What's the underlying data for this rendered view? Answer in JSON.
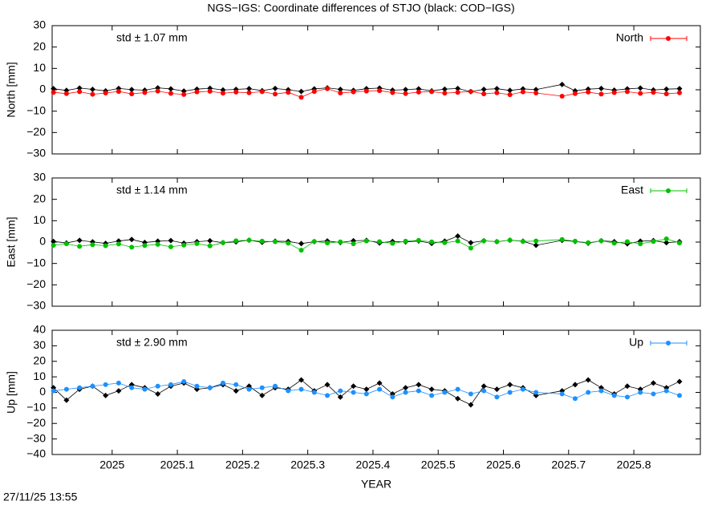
{
  "title": "NGS−IGS: Coordinate differences of STJO (black: COD−IGS)",
  "timestamp": "27/11/25 13:55",
  "chart_data": [
    {
      "type": "scatter",
      "ylabel": "North [mm]",
      "annotation": "std ± 1.07 mm",
      "annotation_color": "#ff0000",
      "legend": "top-right",
      "xlim": [
        2024.908,
        2025.902
      ],
      "xticks": [
        2025,
        2025.1,
        2025.2,
        2025.3,
        2025.4,
        2025.5,
        2025.6,
        2025.7,
        2025.8
      ],
      "ylim": [
        -30,
        30
      ],
      "yticks": [
        {
          "value": -30,
          "label": "−30"
        },
        {
          "value": -20,
          "label": "−20"
        },
        {
          "value": -10,
          "label": "−10"
        },
        0,
        10,
        20,
        30
      ],
      "x": [
        2024.91,
        2024.93,
        2024.95,
        2024.97,
        2024.99,
        2025.01,
        2025.03,
        2025.05,
        2025.07,
        2025.09,
        2025.11,
        2025.13,
        2025.15,
        2025.17,
        2025.19,
        2025.21,
        2025.23,
        2025.25,
        2025.27,
        2025.29,
        2025.31,
        2025.33,
        2025.35,
        2025.37,
        2025.39,
        2025.41,
        2025.43,
        2025.45,
        2025.47,
        2025.49,
        2025.51,
        2025.53,
        2025.55,
        2025.57,
        2025.59,
        2025.61,
        2025.63,
        2025.65,
        2025.69,
        2025.71,
        2025.73,
        2025.75,
        2025.77,
        2025.79,
        2025.81,
        2025.83,
        2025.85,
        2025.87
      ],
      "series": [
        {
          "color": "#000000",
          "values": [
            0.5,
            -0.3,
            0.8,
            0.2,
            -0.5,
            0.6,
            0.1,
            -0.2,
            0.9,
            0.4,
            -0.6,
            0.3,
            0.7,
            -0.1,
            0.2,
            0.5,
            -0.4,
            0.6,
            0.0,
            -0.8,
            0.4,
            0.9,
            0.2,
            -0.3,
            0.5,
            0.8,
            -0.2,
            0.1,
            0.4,
            -0.5,
            0.3,
            0.6,
            -0.9,
            0.2,
            0.5,
            -0.3,
            0.4,
            0.1,
            2.5,
            -0.5,
            0.3,
            0.6,
            -0.2,
            0.4,
            0.8,
            -0.1,
            0.3,
            0.5
          ]
        },
        {
          "name": "North",
          "color": "#ff0000",
          "values": [
            -1.2,
            -1.8,
            -0.9,
            -2.1,
            -1.5,
            -0.8,
            -1.9,
            -1.3,
            -0.6,
            -1.7,
            -2.2,
            -1.0,
            -0.7,
            -1.6,
            -1.1,
            -1.4,
            -0.9,
            -2.0,
            -1.2,
            -3.5,
            -0.8,
            0.5,
            -1.5,
            -1.0,
            -0.6,
            -0.4,
            -1.3,
            -1.8,
            -1.1,
            -0.9,
            -1.6,
            -1.2,
            -0.8,
            -1.9,
            -1.4,
            -2.3,
            -1.0,
            -1.5,
            -3.0,
            -1.8,
            -1.1,
            -2.0,
            -1.3,
            -0.9,
            -1.7,
            -1.2,
            -1.9,
            -1.4
          ]
        }
      ]
    },
    {
      "type": "scatter",
      "ylabel": "East [mm]",
      "annotation": "std ± 1.14 mm",
      "annotation_color": "#00c000",
      "legend": "top-right",
      "xlim": [
        2024.908,
        2025.902
      ],
      "xticks": [
        2025,
        2025.1,
        2025.2,
        2025.3,
        2025.4,
        2025.5,
        2025.6,
        2025.7,
        2025.8
      ],
      "ylim": [
        -30,
        30
      ],
      "yticks": [
        {
          "value": -30,
          "label": "−30"
        },
        {
          "value": -20,
          "label": "−20"
        },
        {
          "value": -10,
          "label": "−10"
        },
        0,
        10,
        20,
        30
      ],
      "x": [
        2024.91,
        2024.93,
        2024.95,
        2024.97,
        2024.99,
        2025.01,
        2025.03,
        2025.05,
        2025.07,
        2025.09,
        2025.11,
        2025.13,
        2025.15,
        2025.17,
        2025.19,
        2025.21,
        2025.23,
        2025.25,
        2025.27,
        2025.29,
        2025.31,
        2025.33,
        2025.35,
        2025.37,
        2025.39,
        2025.41,
        2025.43,
        2025.45,
        2025.47,
        2025.49,
        2025.51,
        2025.53,
        2025.55,
        2025.57,
        2025.59,
        2025.61,
        2025.63,
        2025.65,
        2025.69,
        2025.71,
        2025.73,
        2025.75,
        2025.77,
        2025.79,
        2025.81,
        2025.83,
        2025.85,
        2025.87
      ],
      "series": [
        {
          "color": "#000000",
          "values": [
            0.3,
            -0.4,
            0.8,
            0.1,
            -0.6,
            0.5,
            1.2,
            -0.2,
            0.4,
            0.7,
            -0.5,
            0.2,
            0.6,
            -0.3,
            0.1,
            0.9,
            -0.1,
            0.4,
            0.3,
            -0.7,
            0.2,
            0.5,
            -0.2,
            0.6,
            0.8,
            -0.4,
            0.3,
            0.1,
            0.5,
            -0.6,
            0.4,
            2.8,
            -0.3,
            0.6,
            0.2,
            0.9,
            0.4,
            -1.5,
            0.8,
            0.3,
            -0.5,
            0.6,
            0.2,
            -0.8,
            0.4,
            0.7,
            -0.3,
            0.2
          ]
        },
        {
          "name": "East",
          "color": "#00c000",
          "values": [
            -1.5,
            -0.8,
            -2.0,
            -1.2,
            -1.7,
            -0.9,
            -2.4,
            -1.6,
            -1.1,
            -2.2,
            -1.4,
            -0.7,
            -1.8,
            -0.3,
            0.6,
            0.9,
            0.4,
            0.2,
            -0.5,
            -3.8,
            0.3,
            -0.4,
            0.1,
            -0.8,
            0.5,
            0.2,
            -0.6,
            0.4,
            0.8,
            0.1,
            -0.3,
            0.5,
            -2.8,
            0.6,
            0.2,
            0.9,
            0.3,
            0.5,
            1.2,
            0.4,
            -0.3,
            0.6,
            -0.5,
            0.2,
            -0.8,
            0.3,
            1.5,
            -0.4
          ]
        }
      ]
    },
    {
      "type": "scatter",
      "ylabel": "Up [mm]",
      "xlabel": "YEAR",
      "annotation": "std ± 2.90 mm",
      "annotation_color": "#1e90ff",
      "legend": "top-right",
      "xlim": [
        2024.908,
        2025.902
      ],
      "xticks": [
        2025,
        2025.1,
        2025.2,
        2025.3,
        2025.4,
        2025.5,
        2025.6,
        2025.7,
        2025.8
      ],
      "ylim": [
        -40,
        40
      ],
      "yticks": [
        {
          "value": -40,
          "label": "−40"
        },
        {
          "value": -30,
          "label": "−30"
        },
        {
          "value": -20,
          "label": "−20"
        },
        {
          "value": -10,
          "label": "−10"
        },
        0,
        10,
        20,
        30,
        40
      ],
      "x": [
        2024.91,
        2024.93,
        2024.95,
        2024.97,
        2024.99,
        2025.01,
        2025.03,
        2025.05,
        2025.07,
        2025.09,
        2025.11,
        2025.13,
        2025.15,
        2025.17,
        2025.19,
        2025.21,
        2025.23,
        2025.25,
        2025.27,
        2025.29,
        2025.31,
        2025.33,
        2025.35,
        2025.37,
        2025.39,
        2025.41,
        2025.43,
        2025.45,
        2025.47,
        2025.49,
        2025.51,
        2025.53,
        2025.55,
        2025.57,
        2025.59,
        2025.61,
        2025.63,
        2025.65,
        2025.69,
        2025.71,
        2025.73,
        2025.75,
        2025.77,
        2025.79,
        2025.81,
        2025.83,
        2025.85,
        2025.87
      ],
      "series": [
        {
          "color": "#000000",
          "values": [
            3,
            -5,
            2,
            4,
            -2,
            1,
            5,
            3,
            -1,
            4,
            6,
            2,
            3,
            5,
            1,
            4,
            -2,
            3,
            2,
            8,
            1,
            5,
            -3,
            4,
            2,
            6,
            -1,
            3,
            5,
            2,
            1,
            -4,
            -8,
            4,
            2,
            5,
            3,
            -2,
            1,
            5,
            8,
            3,
            -1,
            4,
            2,
            6,
            3,
            7
          ]
        },
        {
          "name": "Up",
          "color": "#1e90ff",
          "values": [
            1,
            2,
            3,
            4,
            5,
            6,
            3,
            2,
            4,
            5,
            7,
            4,
            3,
            6,
            5,
            2,
            3,
            4,
            1,
            2,
            0,
            -2,
            1,
            0,
            -1,
            2,
            -3,
            0,
            1,
            -2,
            0,
            2,
            -1,
            1,
            -3,
            0,
            2,
            0,
            -1,
            -4,
            0,
            1,
            -2,
            -3,
            0,
            -1,
            1,
            -2
          ]
        }
      ]
    }
  ]
}
